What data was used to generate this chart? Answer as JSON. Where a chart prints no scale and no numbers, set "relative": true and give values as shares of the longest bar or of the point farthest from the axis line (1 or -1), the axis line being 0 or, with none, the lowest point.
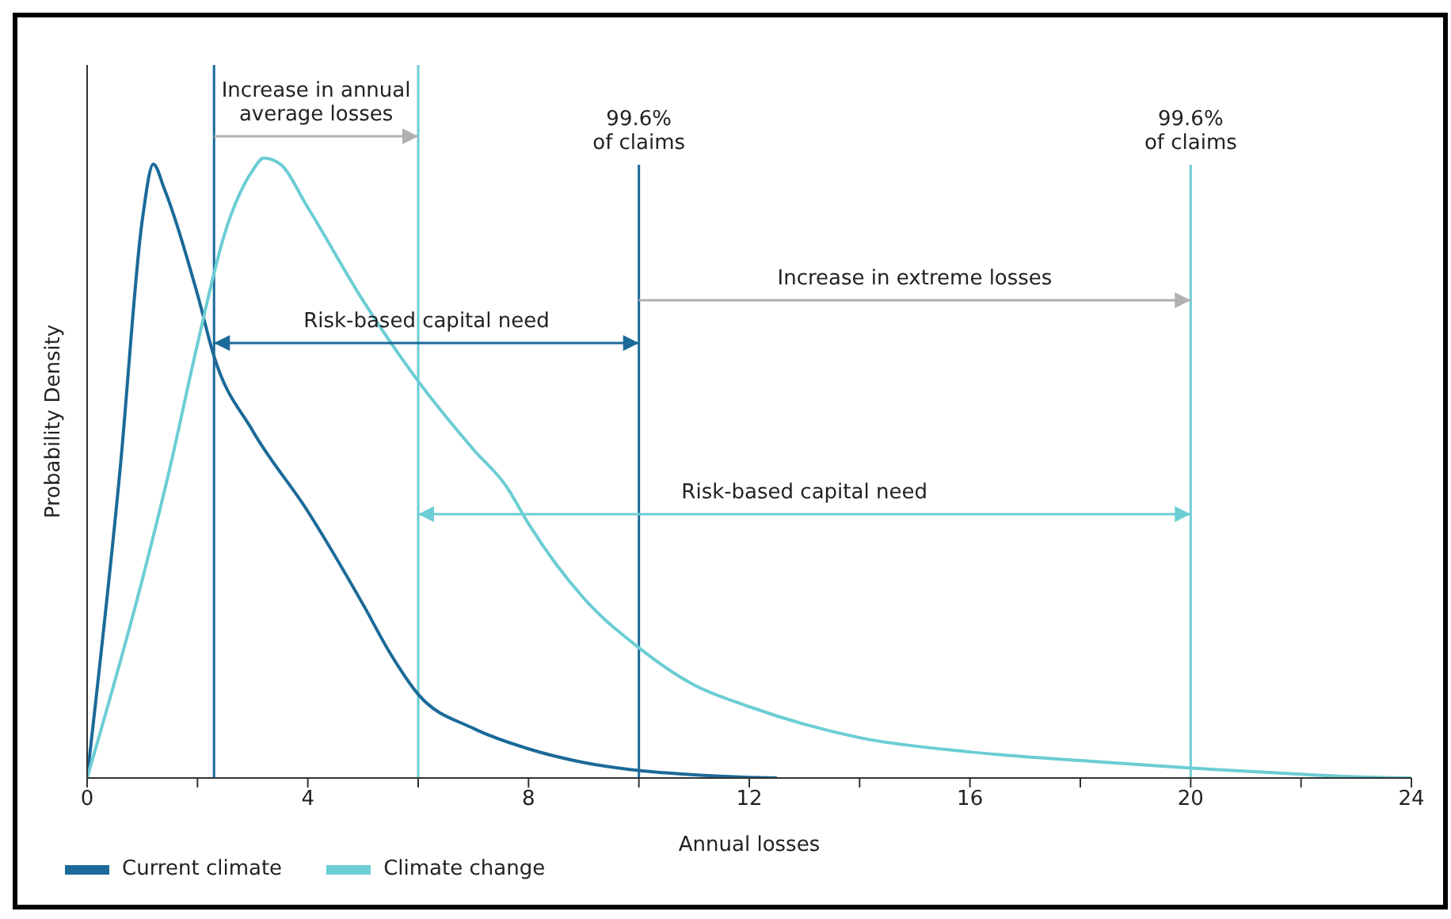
{
  "chart_data": {
    "type": "line",
    "relative": true,
    "xlabel": "Annual losses",
    "ylabel": "Probability Density",
    "xlim": [
      0,
      24
    ],
    "xticks": [
      0,
      {
        "value": 2,
        "label": null
      },
      4,
      {
        "value": 6,
        "label": null
      },
      8,
      {
        "value": 10,
        "label": null
      },
      12,
      {
        "value": 14,
        "label": null
      },
      16,
      {
        "value": 18,
        "label": null
      },
      20,
      {
        "value": 22,
        "label": null
      },
      24
    ],
    "series": [
      {
        "name": "Current climate",
        "color": "#1b6a99",
        "x": [
          0,
          0.6,
          1.0,
          1.2,
          1.4,
          2,
          2.3,
          3,
          4,
          5,
          5.5,
          6,
          7,
          8,
          9,
          10,
          11,
          12,
          12.5
        ],
        "values": [
          0,
          0.5,
          0.9,
          0.99,
          0.95,
          0.78,
          0.68,
          0.56,
          0.43,
          0.28,
          0.2,
          0.135,
          0.08,
          0.047,
          0.025,
          0.012,
          0.005,
          0.001,
          0
        ]
      },
      {
        "name": "Climate change",
        "color": "#6ccdd4",
        "x": [
          0,
          1,
          1.5,
          2,
          2.5,
          3,
          3.2,
          3.5,
          4,
          5,
          6,
          7,
          7.6,
          8,
          9,
          10,
          11,
          12,
          14,
          16,
          18,
          20,
          22,
          23,
          24
        ],
        "values": [
          0,
          0.32,
          0.5,
          0.7,
          0.88,
          0.98,
          1,
          0.99,
          0.92,
          0.77,
          0.64,
          0.53,
          0.47,
          0.41,
          0.29,
          0.21,
          0.15,
          0.115,
          0.065,
          0.042,
          0.028,
          0.016,
          0.006,
          0.002,
          0
        ]
      }
    ],
    "ref_lines": [
      {
        "axis": "x",
        "value": 2.3,
        "color": "#1b6a99"
      },
      {
        "axis": "x",
        "value": 6,
        "color": "#6ccdd4"
      },
      {
        "axis": "x",
        "value": 10,
        "label": "99.6%\nof claims",
        "color": "#1b6a99"
      },
      {
        "axis": "x",
        "value": 20,
        "label": "99.6%\nof claims",
        "color": "#6ccdd4"
      }
    ],
    "annotations": [
      "Increase in annual\naverage losses",
      "Risk-based capital need",
      "Increase in extreme losses",
      "Risk-based capital need"
    ],
    "legend": "bottom left",
    "marker": "none",
    "line_style": "solid"
  }
}
